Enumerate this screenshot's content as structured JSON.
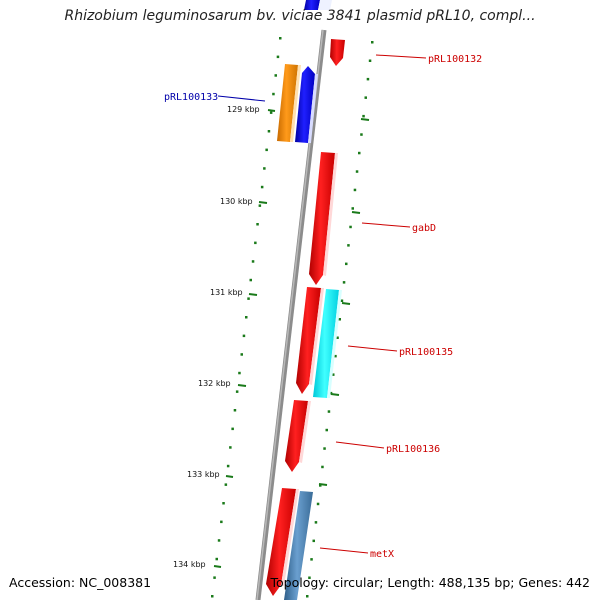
{
  "header": {
    "title": "Rhizobium leguminosarum bv. viciae 3841 plasmid pRL10, compl..."
  },
  "footer": {
    "accession": "Accession: NC_008381",
    "topology": "Topology: circular; Length: 488,135 bp; Genes: 442"
  },
  "colors": {
    "backbone": "#8c8c8c",
    "ticks": "#1a7a1a",
    "forward_gene": "#ff0000",
    "label_red": "#cc0000",
    "label_blue": "#0000aa",
    "orange_gene": "#ff8c00",
    "blue_gene": "#0000ff",
    "cyan_gene": "#00ffff",
    "steel_gene": "#4682b4"
  },
  "ticks": {
    "labels": [
      "129 kbp",
      "130 kbp",
      "131 kbp",
      "132 kbp",
      "133 kbp",
      "134 kbp"
    ]
  },
  "genes": [
    {
      "label": "pRL100132",
      "color": "forward_gene",
      "label_color": "label_red"
    },
    {
      "label": "pRL100133",
      "color": "blue_gene",
      "label_color": "label_blue"
    },
    {
      "label": "gabD",
      "color": "forward_gene",
      "label_color": "label_red"
    },
    {
      "label": "pRL100135",
      "color": "cyan_gene",
      "label_color": "label_red"
    },
    {
      "label": "pRL100136",
      "color": "forward_gene",
      "label_color": "label_red"
    },
    {
      "label": "metX",
      "color": "steel_gene",
      "label_color": "label_red"
    }
  ]
}
